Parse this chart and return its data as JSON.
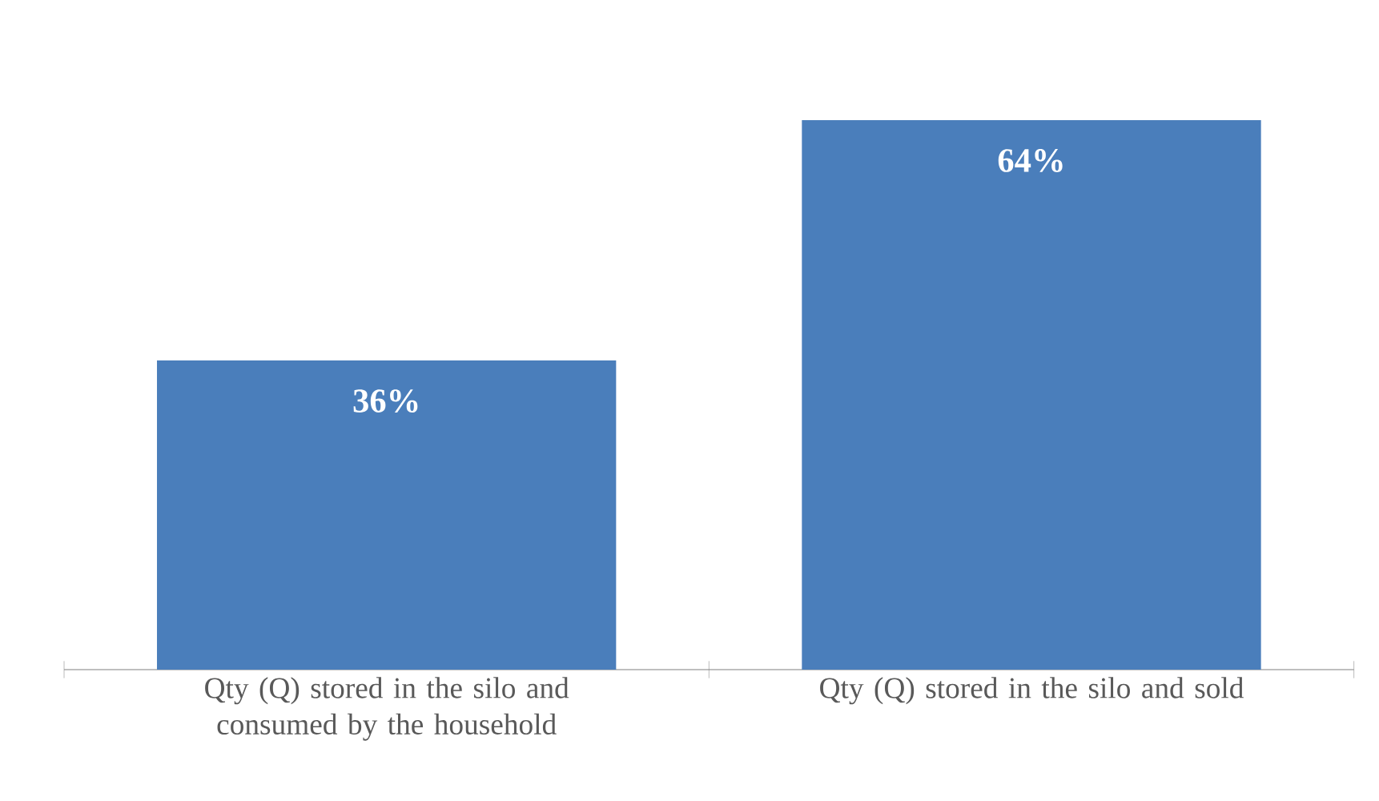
{
  "chart_data": {
    "type": "bar",
    "categories": [
      "Qty (Q) stored in the silo and consumed by the household",
      "Qty (Q) stored in the silo and sold"
    ],
    "values": [
      36,
      64
    ],
    "color": "#4a7ebb",
    "value_labels": [
      "36%",
      "64%"
    ]
  }
}
